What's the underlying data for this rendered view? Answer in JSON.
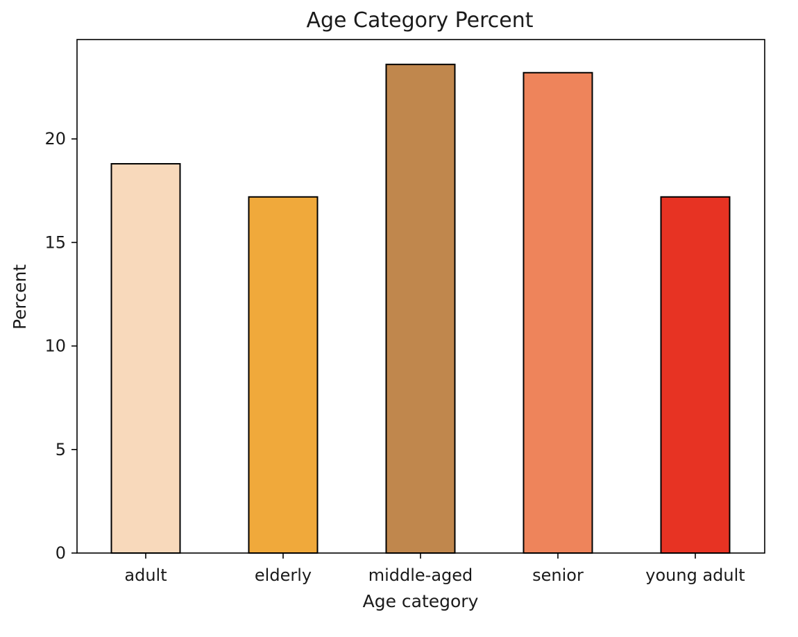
{
  "chart_data": {
    "type": "bar",
    "title": "Age Category Percent",
    "xlabel": "Age category",
    "ylabel": "Percent",
    "categories": [
      "adult",
      "elderly",
      "middle-aged",
      "senior",
      "young adult"
    ],
    "values": [
      18.8,
      17.2,
      23.6,
      23.2,
      17.2
    ],
    "colors": [
      "#f8d9bb",
      "#f0a93b",
      "#c0874d",
      "#ee845b",
      "#e73323"
    ],
    "ylim": [
      0,
      24.8
    ],
    "yticks": [
      0,
      5,
      10,
      15,
      20
    ],
    "ytick_labels": [
      "0",
      "5",
      "10",
      "15",
      "20"
    ],
    "grid": false,
    "legend": false
  }
}
